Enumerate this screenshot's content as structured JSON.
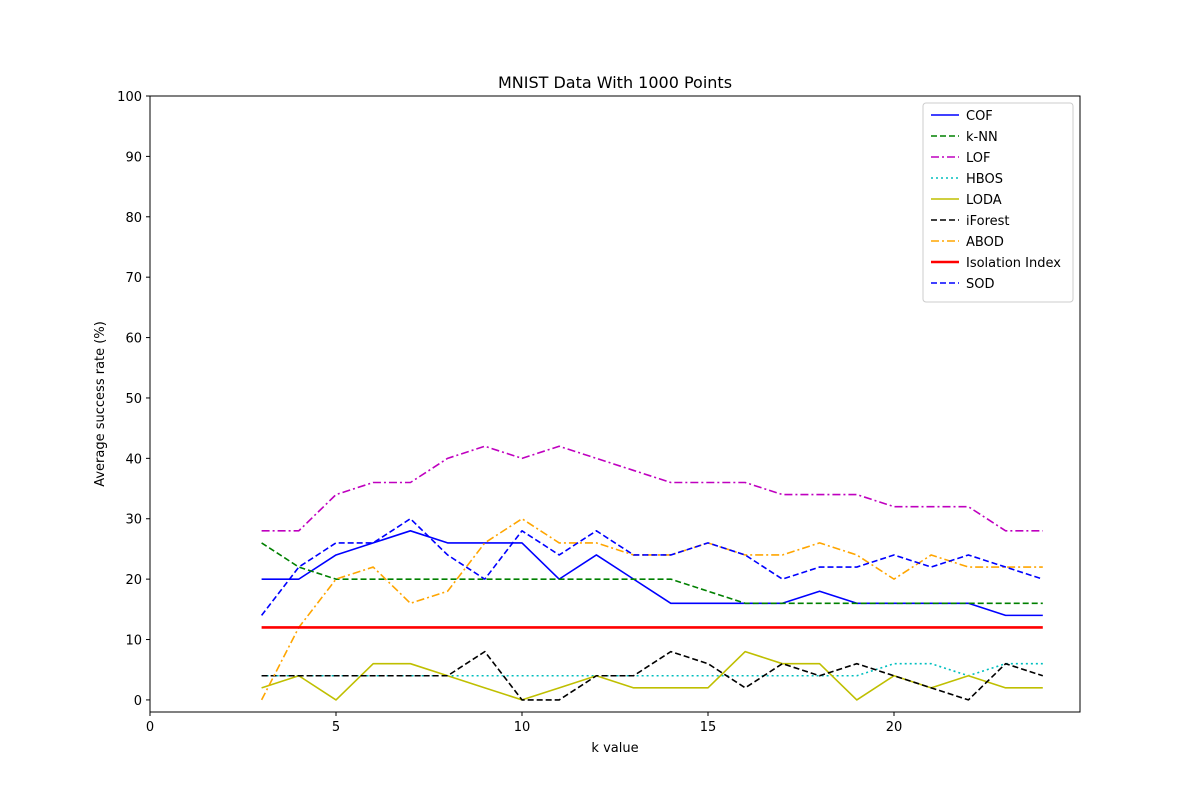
{
  "chart_data": {
    "type": "line",
    "title": "MNIST Data With 1000 Points",
    "xlabel": "k value",
    "ylabel": "Average success rate (%)",
    "xlim": [
      0,
      25
    ],
    "ylim": [
      -2,
      100
    ],
    "xticks": [
      0,
      5,
      10,
      15,
      20
    ],
    "yticks": [
      0,
      10,
      20,
      30,
      40,
      50,
      60,
      70,
      80,
      90,
      100
    ],
    "grid": false,
    "legend_position": "top-right",
    "x": [
      3,
      4,
      5,
      6,
      7,
      8,
      9,
      10,
      11,
      12,
      13,
      14,
      15,
      16,
      17,
      18,
      19,
      20,
      21,
      22,
      23,
      24
    ],
    "series": [
      {
        "name": "COF",
        "color": "#0000ff",
        "style": "solid",
        "values": [
          20,
          20,
          24,
          26,
          28,
          26,
          26,
          26,
          20,
          24,
          20,
          16,
          16,
          16,
          16,
          18,
          16,
          16,
          16,
          16,
          14,
          14
        ]
      },
      {
        "name": "k-NN",
        "color": "#008000",
        "style": "dashed",
        "values": [
          26,
          22,
          20,
          20,
          20,
          20,
          20,
          20,
          20,
          20,
          20,
          20,
          18,
          16,
          16,
          16,
          16,
          16,
          16,
          16,
          16,
          16
        ]
      },
      {
        "name": "LOF",
        "color": "#bf00bf",
        "style": "dashdot",
        "values": [
          28,
          28,
          34,
          36,
          36,
          40,
          42,
          40,
          42,
          40,
          38,
          36,
          36,
          36,
          34,
          34,
          34,
          32,
          32,
          32,
          28,
          28
        ]
      },
      {
        "name": "HBOS",
        "color": "#00bfbf",
        "style": "dotted",
        "values": [
          4,
          4,
          4,
          4,
          4,
          4,
          4,
          4,
          4,
          4,
          4,
          4,
          4,
          4,
          4,
          4,
          4,
          6,
          6,
          4,
          6,
          6
        ]
      },
      {
        "name": "LODA",
        "color": "#bfbf00",
        "style": "solid",
        "values": [
          2,
          4,
          0,
          6,
          6,
          4,
          2,
          0,
          2,
          4,
          2,
          2,
          2,
          8,
          6,
          6,
          0,
          4,
          2,
          4,
          2,
          2
        ]
      },
      {
        "name": "iForest",
        "color": "#000000",
        "style": "dashed",
        "values": [
          4,
          4,
          4,
          4,
          4,
          4,
          8,
          0,
          0,
          4,
          4,
          8,
          6,
          2,
          6,
          4,
          6,
          4,
          2,
          0,
          6,
          4
        ]
      },
      {
        "name": "ABOD",
        "color": "#ffa500",
        "style": "dashdot",
        "values": [
          0,
          12,
          20,
          22,
          16,
          18,
          26,
          30,
          26,
          26,
          24,
          24,
          26,
          24,
          24,
          26,
          24,
          20,
          24,
          22,
          22,
          22
        ]
      },
      {
        "name": "Isolation Index",
        "color": "#ff0000",
        "style": "solid-thick",
        "values": [
          12,
          12,
          12,
          12,
          12,
          12,
          12,
          12,
          12,
          12,
          12,
          12,
          12,
          12,
          12,
          12,
          12,
          12,
          12,
          12,
          12,
          12
        ]
      },
      {
        "name": "SOD",
        "color": "#0000ff",
        "style": "dashed",
        "values": [
          14,
          22,
          26,
          26,
          30,
          24,
          20,
          28,
          24,
          28,
          24,
          24,
          26,
          24,
          20,
          22,
          22,
          24,
          22,
          24,
          22,
          20
        ]
      }
    ]
  }
}
